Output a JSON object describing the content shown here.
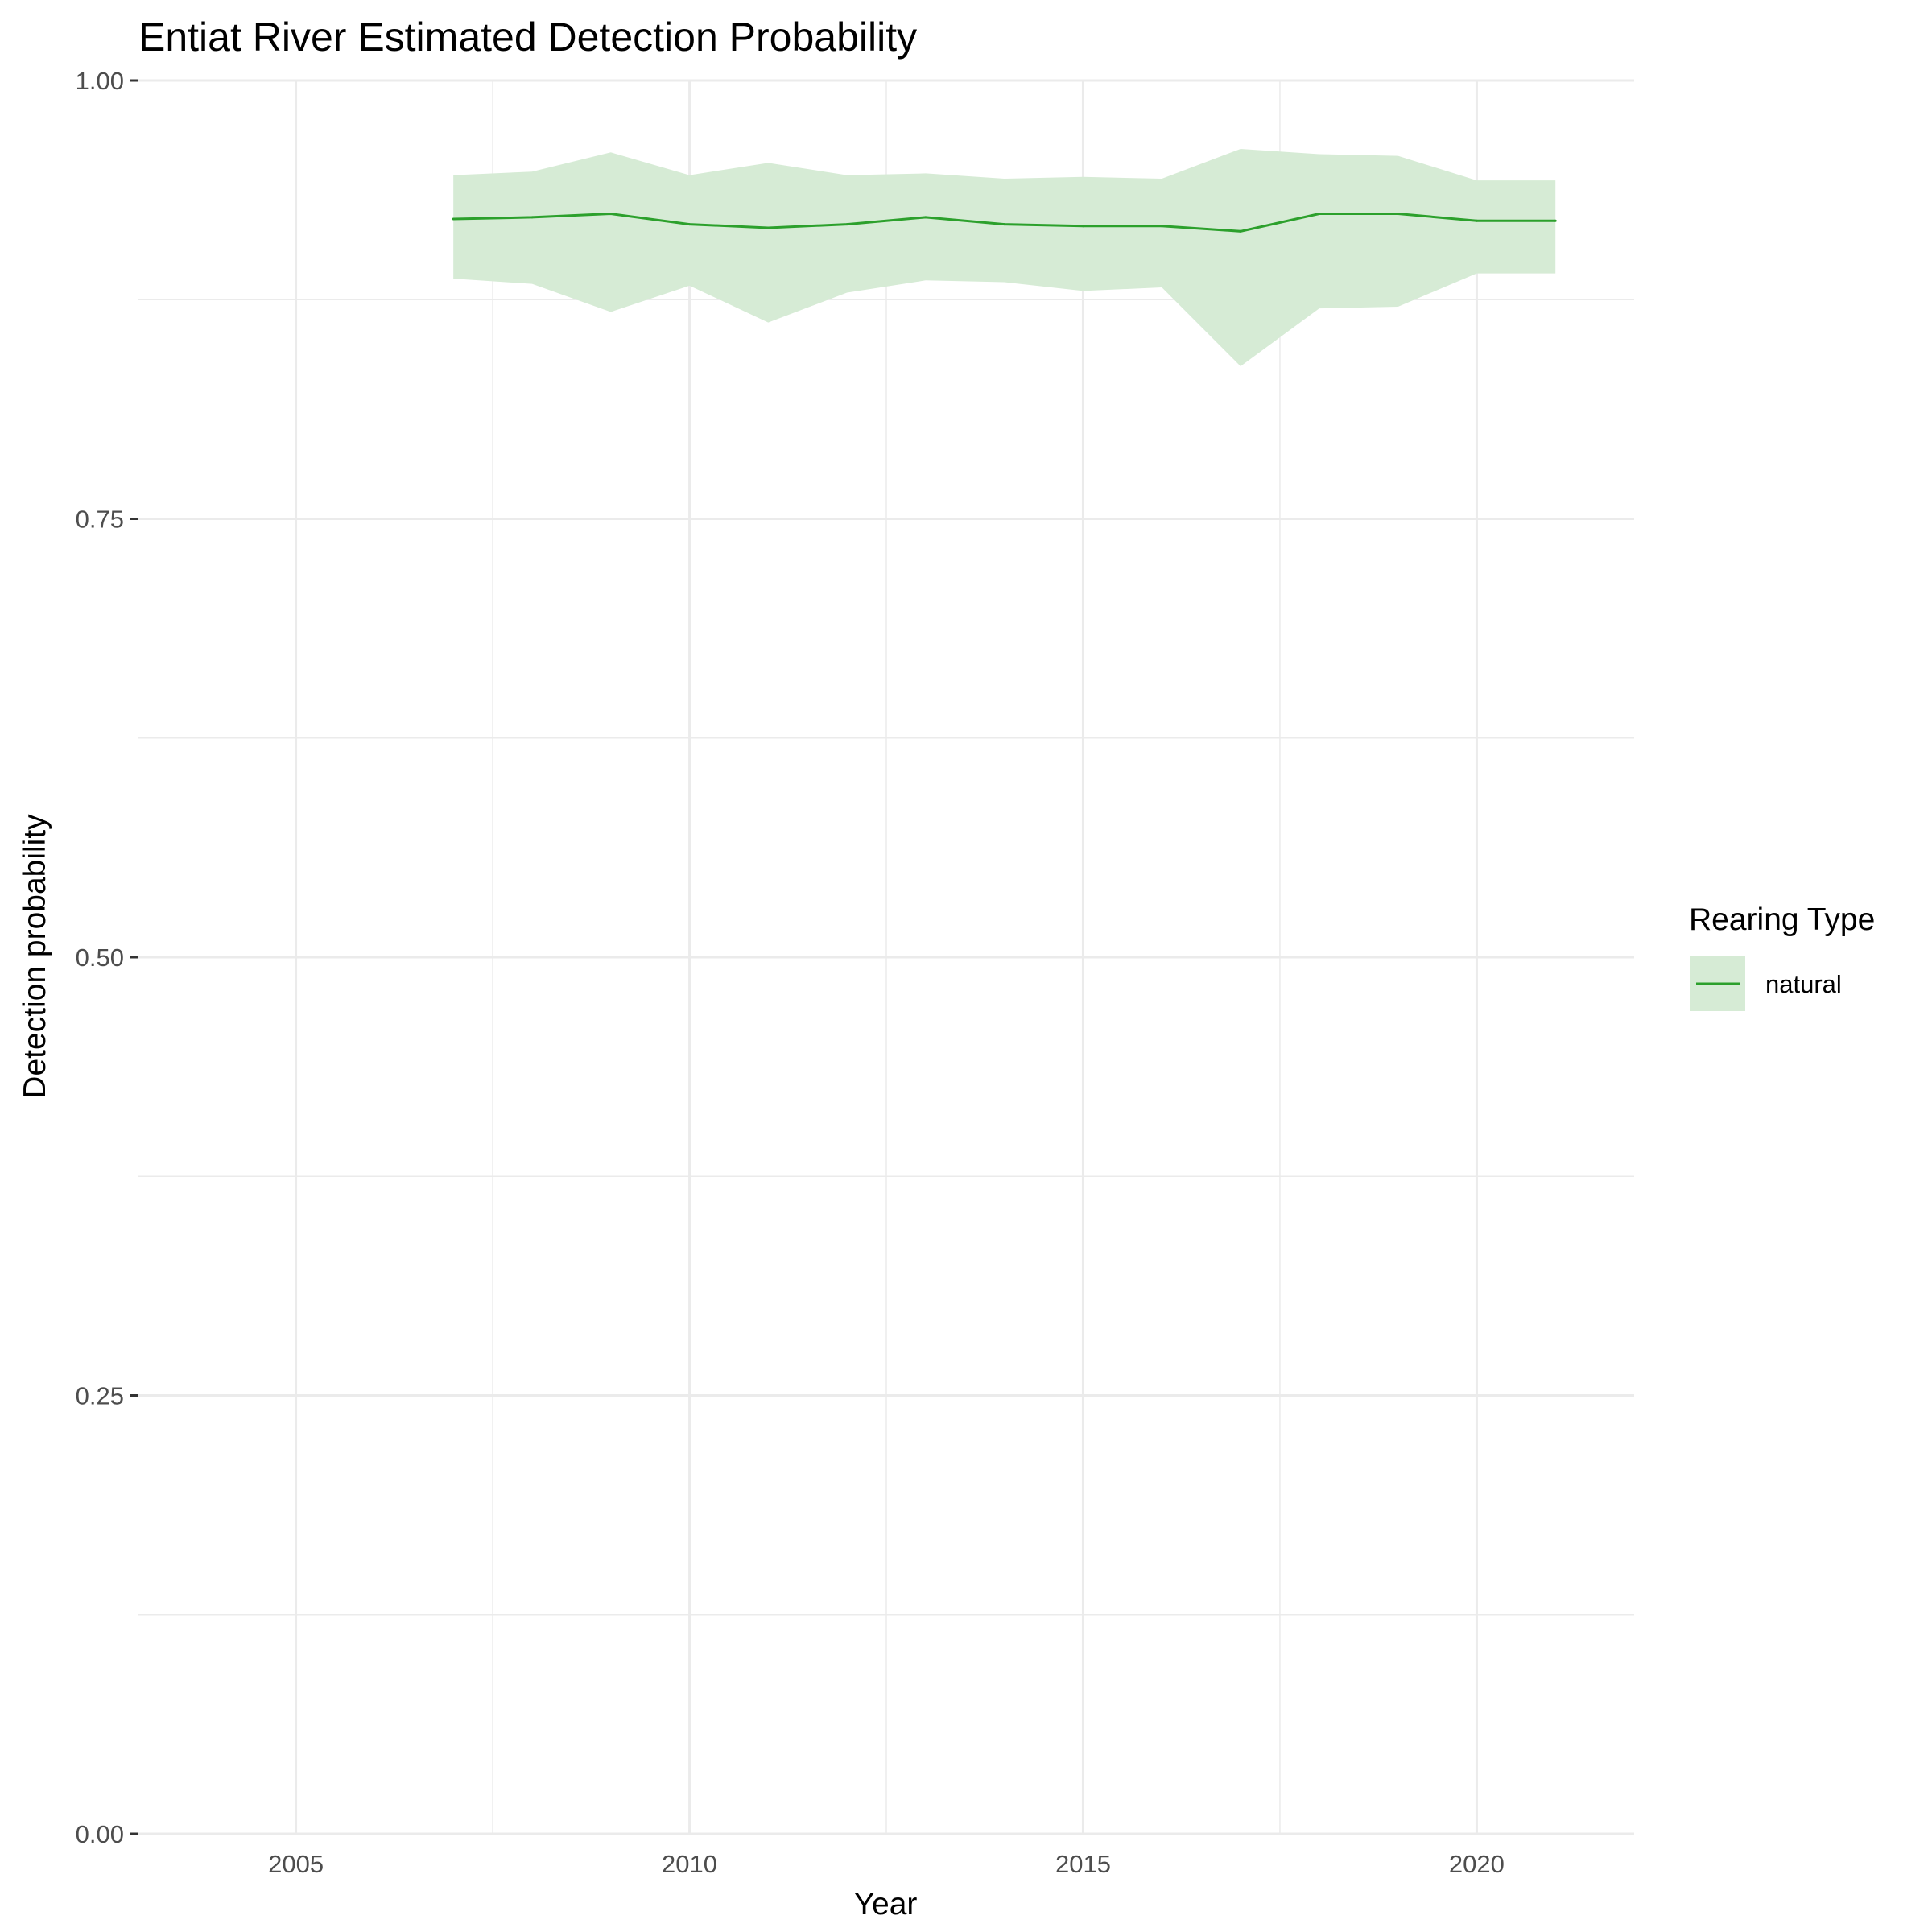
{
  "chart_data": {
    "type": "line",
    "title": "Entiat River Estimated Detection Probability",
    "xlabel": "Year",
    "ylabel": "Detection probability",
    "xlim": [
      2003,
      2022
    ],
    "ylim": [
      0,
      1
    ],
    "x_ticks": [
      2005,
      2010,
      2015,
      2020
    ],
    "x_tick_labels": [
      "2005",
      "2010",
      "2015",
      "2020"
    ],
    "y_ticks": [
      0,
      0.25,
      0.5,
      0.75,
      1
    ],
    "y_tick_labels": [
      "0.00",
      "0.25",
      "0.50",
      "0.75",
      "1.00"
    ],
    "grid": true,
    "legend": {
      "title": "Rearing Type",
      "position": "right"
    },
    "series": [
      {
        "name": "natural",
        "color": "#2ca02c",
        "ribbon_color": "#d6ebd5",
        "x": [
          2007,
          2008,
          2009,
          2010,
          2011,
          2012,
          2013,
          2014,
          2015,
          2016,
          2017,
          2018,
          2019,
          2020,
          2021
        ],
        "y": [
          0.921,
          0.922,
          0.924,
          0.918,
          0.916,
          0.918,
          0.922,
          0.918,
          0.917,
          0.917,
          0.914,
          0.924,
          0.924,
          0.92,
          0.92
        ],
        "lower": [
          0.887,
          0.884,
          0.868,
          0.883,
          0.862,
          0.879,
          0.886,
          0.885,
          0.88,
          0.882,
          0.837,
          0.87,
          0.871,
          0.89,
          0.89
        ],
        "upper": [
          0.946,
          0.948,
          0.959,
          0.946,
          0.953,
          0.946,
          0.947,
          0.944,
          0.945,
          0.944,
          0.961,
          0.958,
          0.957,
          0.943,
          0.943
        ]
      }
    ]
  }
}
